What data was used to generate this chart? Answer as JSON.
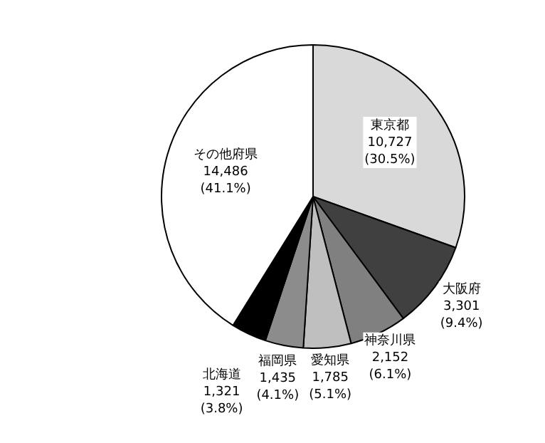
{
  "chart_data": {
    "type": "pie",
    "categories": [
      "東京都",
      "大阪府",
      "神奈川県",
      "愛知県",
      "福岡県",
      "北海道",
      "その他府県"
    ],
    "values": [
      10727,
      3301,
      2152,
      1785,
      1435,
      1321,
      14486
    ],
    "value_labels": [
      "10,727\n(30.5%)",
      "3,301\n(9.4%)",
      "2,152\n(6.1%)",
      "1,785\n(5.1%)",
      "1,435\n(4.1%)",
      "1,321\n(3.8%)",
      "14,486\n(41.1%)"
    ],
    "colors": [
      "#d9d9d9",
      "#404040",
      "#808080",
      "#bfbfbf",
      "#8c8c8c",
      "#000000",
      "#ffffff"
    ],
    "legend": false
  }
}
